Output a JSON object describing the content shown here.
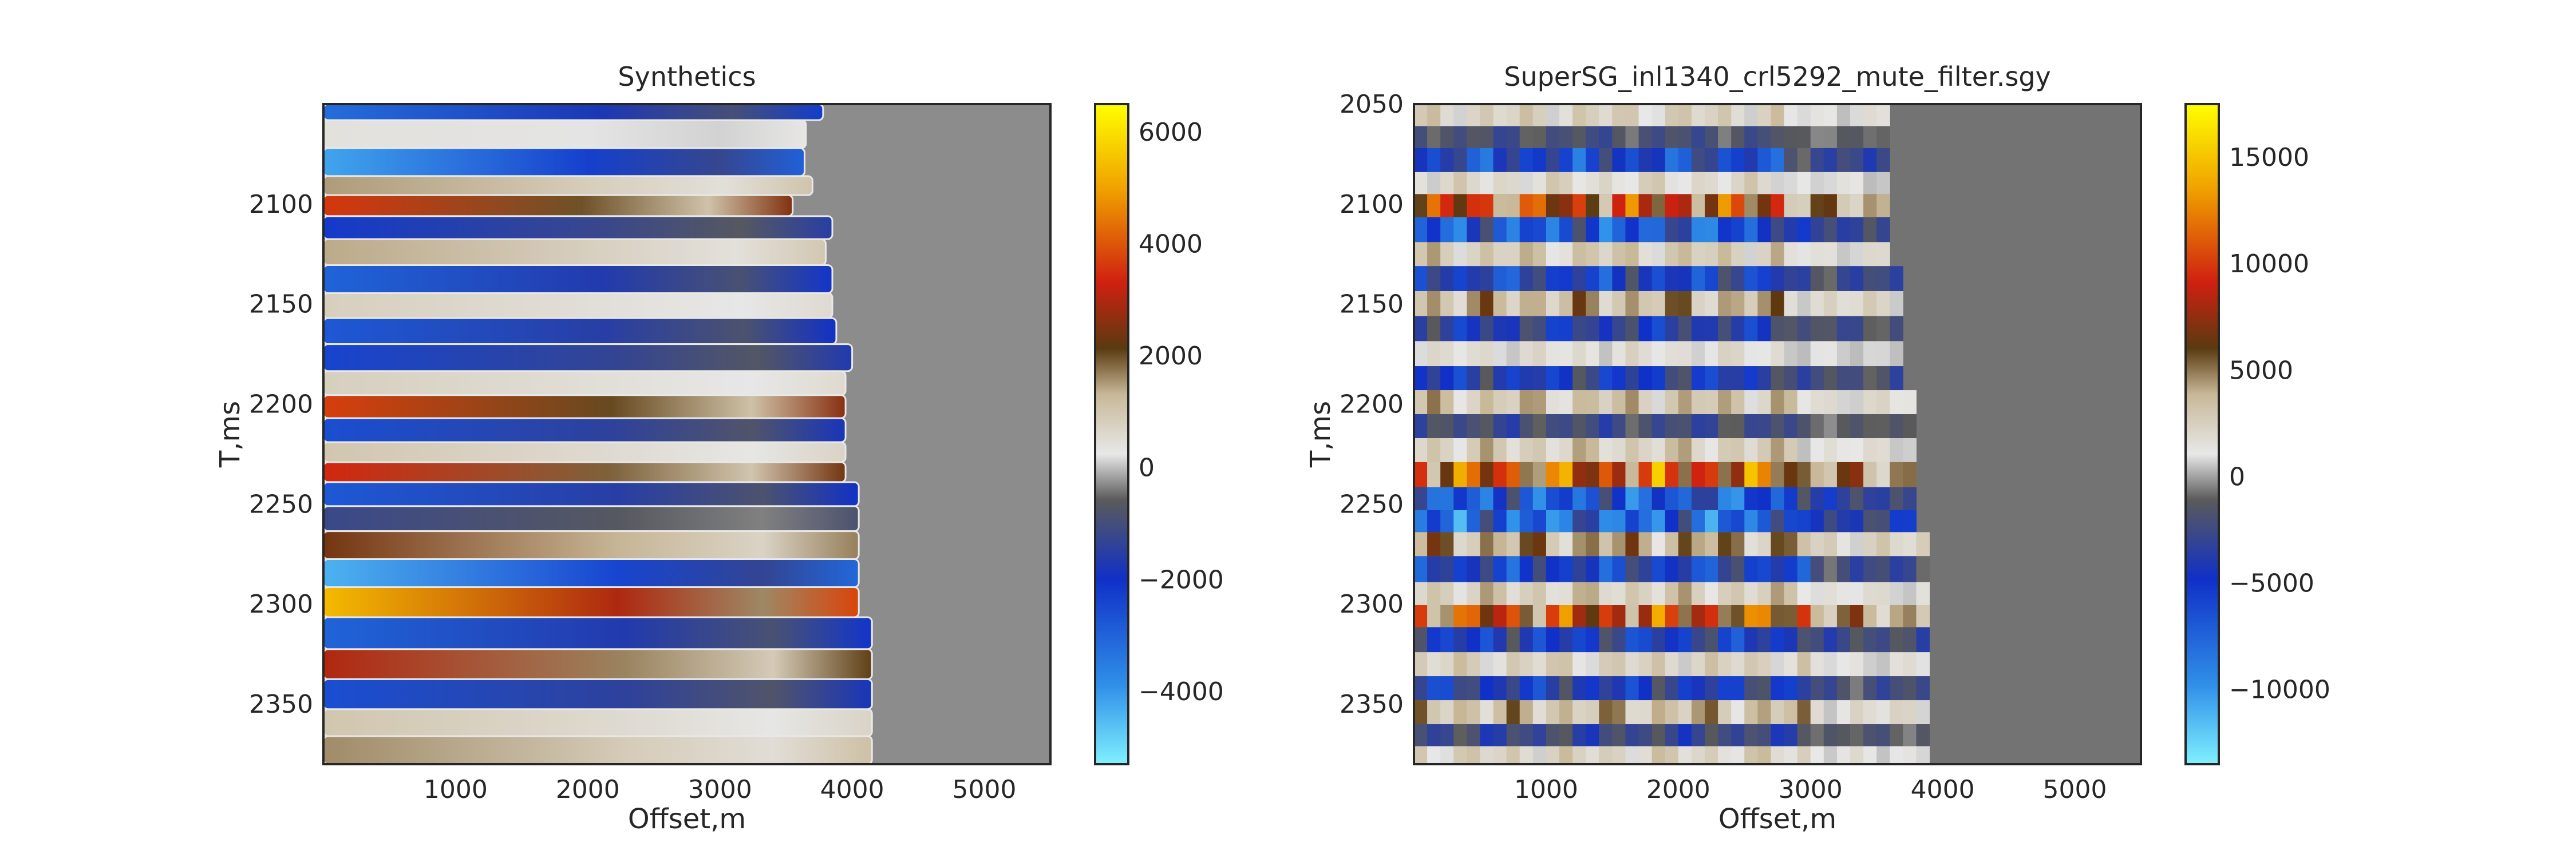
{
  "colors": {
    "background": "#ffffff",
    "axis_frame": "#262626",
    "muted_zone_synthetic": "#8c8c8c",
    "muted_zone_real": "#737373",
    "colormap": [
      "#80f0ff",
      "#2f8fe8",
      "#1030c8",
      "#5a5a5a",
      "#e8e8e8",
      "#c8b898",
      "#5a3a10",
      "#d02010",
      "#f0a000",
      "#ffff00"
    ]
  },
  "chart_data": [
    {
      "type": "heatmap",
      "title": "Synthetics",
      "xlabel": "Offset,m",
      "ylabel": "T,ms",
      "xlim": [
        0,
        5500
      ],
      "ylim": [
        2380,
        2050
      ],
      "x_ticks": [
        "1000",
        "2000",
        "3000",
        "4000",
        "5000"
      ],
      "x_tick_values": [
        1000,
        2000,
        3000,
        4000,
        5000
      ],
      "y_ticks": [
        "2100",
        "2150",
        "2200",
        "2250",
        "2300",
        "2350"
      ],
      "y_tick_values": [
        2100,
        2150,
        2200,
        2250,
        2300,
        2350
      ],
      "colorbar": {
        "range": [
          -5300,
          6500
        ],
        "ticks": [
          "6000",
          "4000",
          "2000",
          "0",
          "−2000",
          "−4000"
        ],
        "tick_values": [
          6000,
          4000,
          2000,
          0,
          -2000,
          -4000
        ]
      },
      "rows": [
        {
          "t": 2053,
          "amp": -3200,
          "end": 3780
        },
        {
          "t": 2063,
          "amp": 400,
          "end": 3650
        },
        {
          "t": 2081,
          "amp": -4200,
          "end": 3640
        },
        {
          "t": 2091,
          "amp": 1500,
          "end": 3700
        },
        {
          "t": 2100,
          "amp": 3600,
          "end": 3550
        },
        {
          "t": 2112,
          "amp": -2200,
          "end": 3850
        },
        {
          "t": 2123,
          "amp": 1400,
          "end": 3800
        },
        {
          "t": 2138,
          "amp": -3000,
          "end": 3850
        },
        {
          "t": 2151,
          "amp": 800,
          "end": 3850
        },
        {
          "t": 2163,
          "amp": -2800,
          "end": 3880
        },
        {
          "t": 2177,
          "amp": -2400,
          "end": 4000
        },
        {
          "t": 2190,
          "amp": 800,
          "end": 3950
        },
        {
          "t": 2201,
          "amp": 3700,
          "end": 3950
        },
        {
          "t": 2213,
          "amp": -2600,
          "end": 3950
        },
        {
          "t": 2225,
          "amp": 1000,
          "end": 3950
        },
        {
          "t": 2233,
          "amp": 3400,
          "end": 3950
        },
        {
          "t": 2245,
          "amp": -2800,
          "end": 4050
        },
        {
          "t": 2257,
          "amp": -1200,
          "end": 4050
        },
        {
          "t": 2270,
          "amp": 2400,
          "end": 4050
        },
        {
          "t": 2285,
          "amp": -4400,
          "end": 4050
        },
        {
          "t": 2298,
          "amp": 5400,
          "end": 4050
        },
        {
          "t": 2315,
          "amp": -3000,
          "end": 4150
        },
        {
          "t": 2330,
          "amp": 3000,
          "end": 4150
        },
        {
          "t": 2345,
          "amp": -2600,
          "end": 4150
        },
        {
          "t": 2360,
          "amp": 1000,
          "end": 4150
        },
        {
          "t": 2372,
          "amp": 1600,
          "end": 4150
        }
      ]
    },
    {
      "type": "heatmap",
      "title": "SuperSG_inl1340_crl5292_mute_filter.sgy",
      "xlabel": "Offset,m",
      "ylabel": "T,ms",
      "xlim": [
        0,
        5500
      ],
      "ylim": [
        2380,
        2050
      ],
      "x_ticks": [
        "1000",
        "2000",
        "3000",
        "4000",
        "5000"
      ],
      "x_tick_values": [
        1000,
        2000,
        3000,
        4000,
        5000
      ],
      "y_ticks": [
        "2050",
        "2100",
        "2150",
        "2200",
        "2250",
        "2300",
        "2350"
      ],
      "y_tick_values": [
        2050,
        2100,
        2150,
        2200,
        2250,
        2300,
        2350
      ],
      "colorbar": {
        "range": [
          -13500,
          17500
        ],
        "ticks": [
          "15000",
          "10000",
          "5000",
          "0",
          "−5000",
          "−10000"
        ],
        "tick_values": [
          15000,
          10000,
          5000,
          0,
          -5000,
          -10000
        ]
      },
      "rows": [
        {
          "t": 2056,
          "amp": 3000,
          "end": 3550
        },
        {
          "t": 2066,
          "amp": -2500,
          "end": 3550
        },
        {
          "t": 2078,
          "amp": -7000,
          "end": 3550
        },
        {
          "t": 2090,
          "amp": 2500,
          "end": 3550
        },
        {
          "t": 2100,
          "amp": 10500,
          "end": 3550
        },
        {
          "t": 2113,
          "amp": -8500,
          "end": 3600
        },
        {
          "t": 2125,
          "amp": 3500,
          "end": 3600
        },
        {
          "t": 2137,
          "amp": -6500,
          "end": 3650
        },
        {
          "t": 2150,
          "amp": 5000,
          "end": 3650
        },
        {
          "t": 2162,
          "amp": -5000,
          "end": 3700
        },
        {
          "t": 2175,
          "amp": 2000,
          "end": 3700
        },
        {
          "t": 2187,
          "amp": -5500,
          "end": 3700
        },
        {
          "t": 2199,
          "amp": 4000,
          "end": 3750
        },
        {
          "t": 2211,
          "amp": -3000,
          "end": 3750
        },
        {
          "t": 2223,
          "amp": 3500,
          "end": 3750
        },
        {
          "t": 2235,
          "amp": 12000,
          "end": 3750
        },
        {
          "t": 2248,
          "amp": -8500,
          "end": 3800
        },
        {
          "t": 2258,
          "amp": -9500,
          "end": 3800
        },
        {
          "t": 2270,
          "amp": 5500,
          "end": 3850
        },
        {
          "t": 2282,
          "amp": -6500,
          "end": 3850
        },
        {
          "t": 2296,
          "amp": 3500,
          "end": 3850
        },
        {
          "t": 2305,
          "amp": 11000,
          "end": 3850
        },
        {
          "t": 2318,
          "amp": -6000,
          "end": 3900
        },
        {
          "t": 2330,
          "amp": 3000,
          "end": 3900
        },
        {
          "t": 2342,
          "amp": -5500,
          "end": 3900
        },
        {
          "t": 2354,
          "amp": 4500,
          "end": 3900
        },
        {
          "t": 2366,
          "amp": -3500,
          "end": 3900
        },
        {
          "t": 2376,
          "amp": 3000,
          "end": 3900
        }
      ]
    }
  ]
}
